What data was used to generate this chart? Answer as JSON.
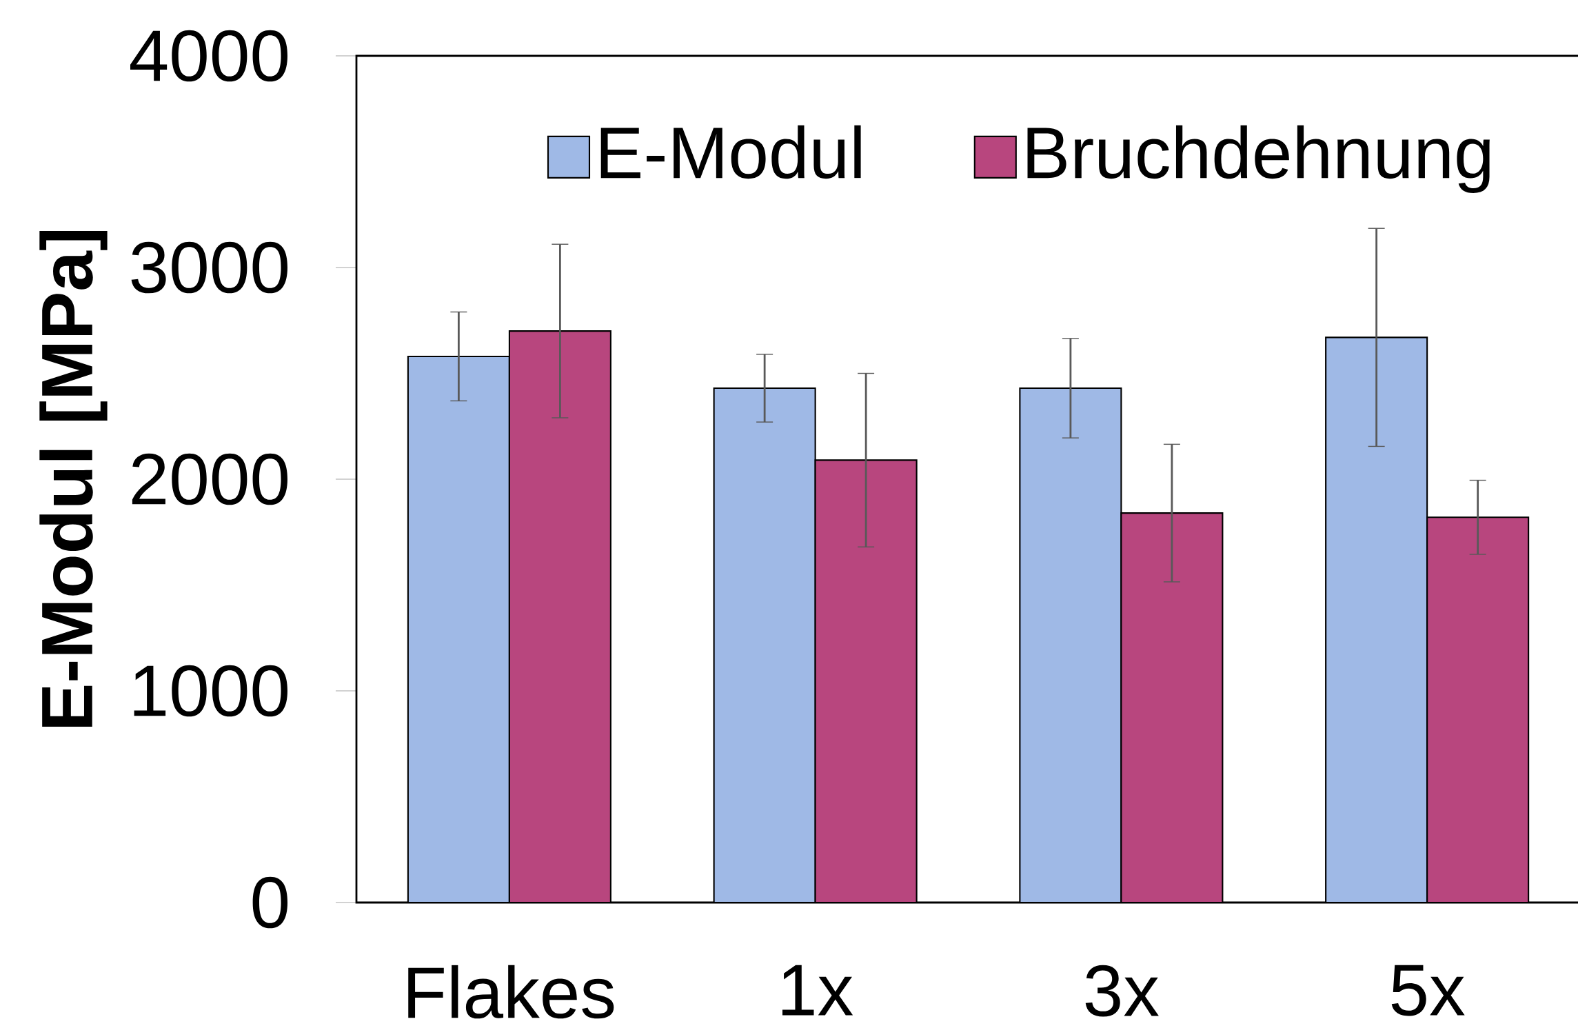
{
  "chart_data": {
    "type": "bar",
    "ylabel": "E-Modul [MPa]",
    "categories": [
      "Flakes",
      "1x",
      "3x",
      "5x"
    ],
    "series": [
      {
        "name": "E-Modul",
        "color": "#9fb9e6",
        "values": [
          2580,
          2430,
          2430,
          2670
        ],
        "errors": [
          210,
          160,
          235,
          515
        ]
      },
      {
        "name": "Bruchdehnung",
        "color": "#b8467e",
        "values": [
          2700,
          2090,
          1840,
          1820
        ],
        "errors": [
          410,
          410,
          325,
          175
        ]
      }
    ],
    "ylim": [
      0,
      4000
    ],
    "yticks": [
      0,
      1000,
      2000,
      3000,
      4000
    ],
    "legend": "top",
    "grid": false
  }
}
